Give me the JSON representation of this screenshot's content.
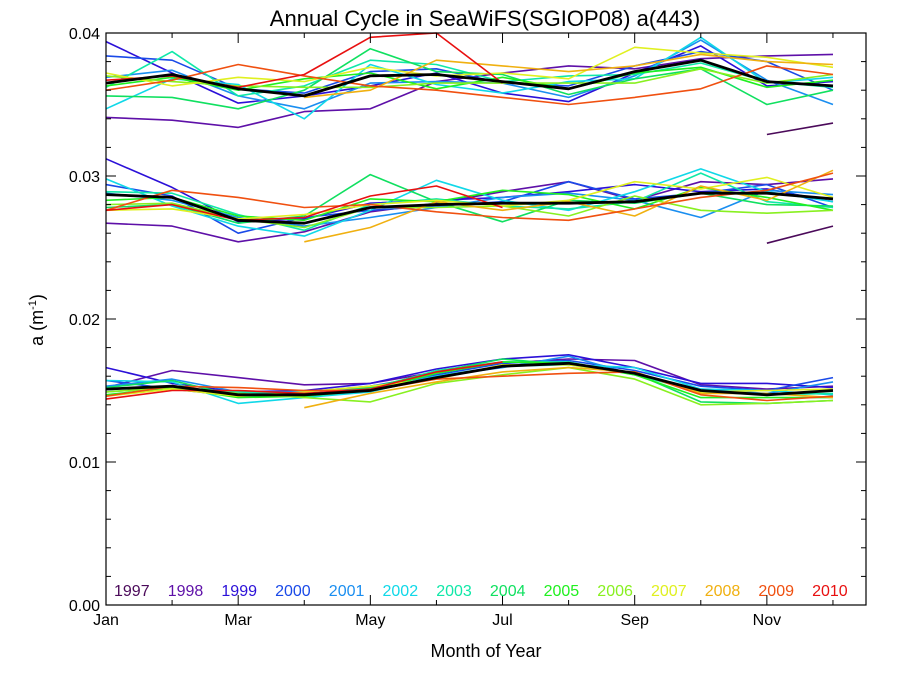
{
  "chart_data": {
    "type": "line",
    "title": "Annual Cycle in SeaWiFS(SGIOP08) a(443)",
    "xlabel": "Month of Year",
    "ylabel_main": "a (m",
    "ylabel_sup": "-1",
    "ylabel_tail": ")",
    "xlim": [
      1,
      12.5
    ],
    "ylim": [
      0.0,
      0.04
    ],
    "x_ticks": [
      {
        "x": 1,
        "label": "Jan"
      },
      {
        "x": 3,
        "label": "Mar"
      },
      {
        "x": 5,
        "label": "May"
      },
      {
        "x": 7,
        "label": "Jul"
      },
      {
        "x": 9,
        "label": "Sep"
      },
      {
        "x": 11,
        "label": "Nov"
      }
    ],
    "y_ticks": [
      {
        "y": 0.0,
        "label": "0.00"
      },
      {
        "y": 0.01,
        "label": "0.01"
      },
      {
        "y": 0.02,
        "label": "0.02"
      },
      {
        "y": 0.03,
        "label": "0.03"
      },
      {
        "y": 0.04,
        "label": "0.04"
      }
    ],
    "grid": false,
    "legend_position": "bottom",
    "months": [
      1,
      2,
      3,
      4,
      5,
      6,
      7,
      8,
      9,
      10,
      11,
      12
    ],
    "series": [
      {
        "name": "1997",
        "color": "#4b0a5a",
        "groups": [
          [
            null,
            null,
            null,
            null,
            null,
            null,
            null,
            null,
            null,
            null,
            0.0329,
            0.0337
          ],
          [
            null,
            null,
            null,
            null,
            null,
            null,
            null,
            null,
            null,
            null,
            0.0253,
            0.0265
          ],
          [
            null,
            null,
            null,
            null,
            null,
            null,
            null,
            null,
            null,
            null,
            null,
            null
          ]
        ]
      },
      {
        "name": "1998",
        "color": "#5e10a8",
        "groups": [
          [
            0.0341,
            0.0339,
            0.0334,
            0.0345,
            0.0347,
            0.0366,
            0.0372,
            0.0377,
            0.0375,
            0.0382,
            0.0384,
            0.0385
          ],
          [
            0.0267,
            0.0265,
            0.0254,
            0.0261,
            0.0275,
            0.0281,
            0.0289,
            0.0296,
            0.0283,
            0.0296,
            0.0294,
            0.0298
          ],
          [
            0.0152,
            0.0164,
            0.0159,
            0.0154,
            0.0155,
            0.0163,
            0.0169,
            0.0172,
            0.0171,
            0.0154,
            0.0151,
            0.0153
          ]
        ]
      },
      {
        "name": "1999",
        "color": "#2b10d8",
        "groups": [
          [
            0.0394,
            0.0372,
            0.0351,
            0.0356,
            0.0363,
            0.0372,
            0.0358,
            0.0352,
            0.0372,
            0.0391,
            0.0363,
            0.0366
          ],
          [
            0.0312,
            0.0292,
            0.0268,
            0.027,
            0.0281,
            0.0283,
            0.0285,
            0.0289,
            0.0294,
            0.0289,
            0.0291,
            0.0282
          ],
          [
            0.0166,
            0.0155,
            0.0149,
            0.015,
            0.0155,
            0.0165,
            0.0172,
            0.0175,
            0.0166,
            0.0155,
            0.0155,
            0.0152
          ]
        ]
      },
      {
        "name": "2000",
        "color": "#1a4ae8",
        "groups": [
          [
            0.0384,
            0.0381,
            0.0361,
            0.0358,
            0.0373,
            0.0375,
            0.0365,
            0.0363,
            0.0377,
            0.0387,
            0.038,
            0.036
          ],
          [
            0.0294,
            0.0286,
            0.026,
            0.0271,
            0.0276,
            0.0279,
            0.0282,
            0.0296,
            0.0284,
            0.0288,
            0.0294,
            0.0278
          ],
          [
            0.0157,
            0.0151,
            0.0146,
            0.0147,
            0.0153,
            0.0161,
            0.0169,
            0.0171,
            0.0164,
            0.0153,
            0.015,
            0.0159
          ]
        ]
      },
      {
        "name": "2001",
        "color": "#1a8ef0",
        "groups": [
          [
            0.0369,
            0.0374,
            0.0356,
            0.0347,
            0.0365,
            0.0366,
            0.0365,
            0.0355,
            0.037,
            0.0395,
            0.0367,
            0.035
          ],
          [
            0.0288,
            0.0283,
            0.0271,
            0.0265,
            0.0271,
            0.0278,
            0.0285,
            0.0288,
            0.0283,
            0.0271,
            0.029,
            0.0287
          ],
          [
            0.0153,
            0.0158,
            0.0149,
            0.0149,
            0.0153,
            0.016,
            0.0166,
            0.0174,
            0.0161,
            0.0151,
            0.0148,
            0.0156
          ]
        ]
      },
      {
        "name": "2002",
        "color": "#10d8e8",
        "groups": [
          [
            0.0347,
            0.0368,
            0.0364,
            0.034,
            0.0378,
            0.0364,
            0.0358,
            0.0366,
            0.0368,
            0.0397,
            0.0365,
            0.0369
          ],
          [
            0.0298,
            0.0279,
            0.0265,
            0.0258,
            0.0276,
            0.0297,
            0.0283,
            0.0276,
            0.0289,
            0.0305,
            0.0289,
            0.0282
          ],
          [
            0.0157,
            0.0156,
            0.0141,
            0.0145,
            0.0149,
            0.016,
            0.0167,
            0.0168,
            0.0166,
            0.0151,
            0.015,
            0.0147
          ]
        ]
      },
      {
        "name": "2003",
        "color": "#10e8a8",
        "groups": [
          [
            0.0362,
            0.0387,
            0.0356,
            0.0363,
            0.0381,
            0.0378,
            0.0366,
            0.037,
            0.0371,
            0.0379,
            0.0366,
            0.0362
          ],
          [
            0.0289,
            0.0288,
            0.0273,
            0.0262,
            0.028,
            0.0284,
            0.0279,
            0.0277,
            0.0282,
            0.0302,
            0.0282,
            0.0278
          ],
          [
            0.0149,
            0.0152,
            0.0149,
            0.0147,
            0.0151,
            0.0164,
            0.017,
            0.017,
            0.0161,
            0.0149,
            0.0147,
            0.0148
          ]
        ]
      },
      {
        "name": "2004",
        "color": "#10e060",
        "groups": [
          [
            0.0356,
            0.0355,
            0.0347,
            0.036,
            0.0389,
            0.0373,
            0.0371,
            0.0357,
            0.0368,
            0.0375,
            0.035,
            0.036
          ],
          [
            0.0278,
            0.028,
            0.0267,
            0.0272,
            0.0301,
            0.0282,
            0.0268,
            0.0283,
            0.0281,
            0.0288,
            0.028,
            0.0279
          ],
          [
            0.0152,
            0.0157,
            0.0146,
            0.0147,
            0.0152,
            0.0163,
            0.0172,
            0.0168,
            0.0162,
            0.0142,
            0.0141,
            0.0143
          ]
        ]
      },
      {
        "name": "2005",
        "color": "#20f020",
        "groups": [
          [
            0.0363,
            0.0369,
            0.036,
            0.0368,
            0.0372,
            0.0361,
            0.0369,
            0.0361,
            0.0372,
            0.0376,
            0.0362,
            0.0367
          ],
          [
            0.0283,
            0.0285,
            0.0272,
            0.0269,
            0.0284,
            0.0282,
            0.029,
            0.0287,
            0.0277,
            0.0292,
            0.0285,
            0.0276
          ],
          [
            0.0147,
            0.0152,
            0.0145,
            0.0146,
            0.015,
            0.0162,
            0.017,
            0.0169,
            0.0161,
            0.0145,
            0.0145,
            0.0145
          ]
        ]
      },
      {
        "name": "2006",
        "color": "#88f020",
        "groups": [
          [
            0.037,
            0.0366,
            0.0363,
            0.0362,
            0.0362,
            0.0365,
            0.0365,
            0.0365,
            0.0365,
            0.0375,
            0.0365,
            0.0371
          ],
          [
            0.028,
            0.0281,
            0.027,
            0.0264,
            0.0278,
            0.0278,
            0.0279,
            0.0272,
            0.0286,
            0.0276,
            0.0274,
            0.0276
          ],
          [
            0.0149,
            0.0152,
            0.0148,
            0.0145,
            0.0142,
            0.0155,
            0.0161,
            0.0166,
            0.0158,
            0.014,
            0.0141,
            0.0143
          ]
        ]
      },
      {
        "name": "2007",
        "color": "#e0f020",
        "groups": [
          [
            0.0372,
            0.0363,
            0.0369,
            0.0366,
            0.0376,
            0.037,
            0.0372,
            0.0368,
            0.039,
            0.0386,
            0.0383,
            0.0376
          ],
          [
            0.0276,
            0.0277,
            0.027,
            0.0273,
            0.028,
            0.0283,
            0.0279,
            0.0283,
            0.0296,
            0.0291,
            0.0299,
            0.0285
          ],
          [
            0.0146,
            0.0151,
            0.0146,
            0.0149,
            0.0153,
            0.0158,
            0.0168,
            0.0168,
            0.0162,
            0.0149,
            0.015,
            0.0151
          ]
        ]
      },
      {
        "name": "2008",
        "color": "#f0b010",
        "groups": [
          [
            null,
            null,
            null,
            0.0355,
            0.036,
            0.0381,
            0.0377,
            0.0373,
            0.0377,
            0.0385,
            0.038,
            0.0378
          ],
          [
            null,
            null,
            null,
            0.0254,
            0.0264,
            0.0282,
            0.0276,
            0.0282,
            0.0272,
            0.0293,
            0.0283,
            0.0304
          ],
          [
            null,
            null,
            null,
            0.0138,
            0.0148,
            0.0156,
            0.0163,
            0.0166,
            0.0163,
            0.0148,
            0.0148,
            0.0145
          ]
        ]
      },
      {
        "name": "2009",
        "color": "#f05010",
        "groups": [
          [
            0.036,
            0.0367,
            0.0378,
            0.037,
            0.0363,
            0.036,
            0.0355,
            0.035,
            0.0355,
            0.0361,
            0.0377,
            0.0371
          ],
          [
            0.0276,
            0.029,
            0.0285,
            0.0278,
            0.028,
            0.0275,
            0.0271,
            0.0269,
            0.0277,
            0.0285,
            0.029,
            0.0302
          ],
          [
            0.0146,
            0.0153,
            0.0152,
            0.015,
            0.015,
            0.0158,
            0.016,
            0.0162,
            0.0163,
            0.0147,
            0.0143,
            0.0146
          ]
        ]
      },
      {
        "name": "2010",
        "color": "#e81010",
        "groups": [
          [
            0.0367,
            0.037,
            0.0362,
            0.0371,
            0.0397,
            0.04,
            0.0365,
            null,
            null,
            null,
            null,
            null
          ],
          [
            0.0276,
            0.028,
            0.0269,
            0.0271,
            0.0286,
            0.0293,
            0.0278,
            null,
            null,
            null,
            null,
            null
          ],
          [
            0.0144,
            0.015,
            0.015,
            0.0148,
            0.0151,
            0.0163,
            0.017,
            null,
            null,
            null,
            null,
            null
          ]
        ]
      }
    ],
    "mean_series": {
      "color": "#000000",
      "groups": [
        [
          0.0365,
          0.0371,
          0.0361,
          0.0356,
          0.037,
          0.0371,
          0.0366,
          0.0361,
          0.0373,
          0.0381,
          0.0366,
          0.0363
        ],
        [
          0.0287,
          0.0285,
          0.0269,
          0.0267,
          0.0278,
          0.028,
          0.0281,
          0.0281,
          0.0282,
          0.0288,
          0.0288,
          0.0284
        ],
        [
          0.0151,
          0.0153,
          0.0147,
          0.0147,
          0.015,
          0.0159,
          0.0167,
          0.0169,
          0.0162,
          0.015,
          0.0147,
          0.015
        ]
      ]
    }
  }
}
